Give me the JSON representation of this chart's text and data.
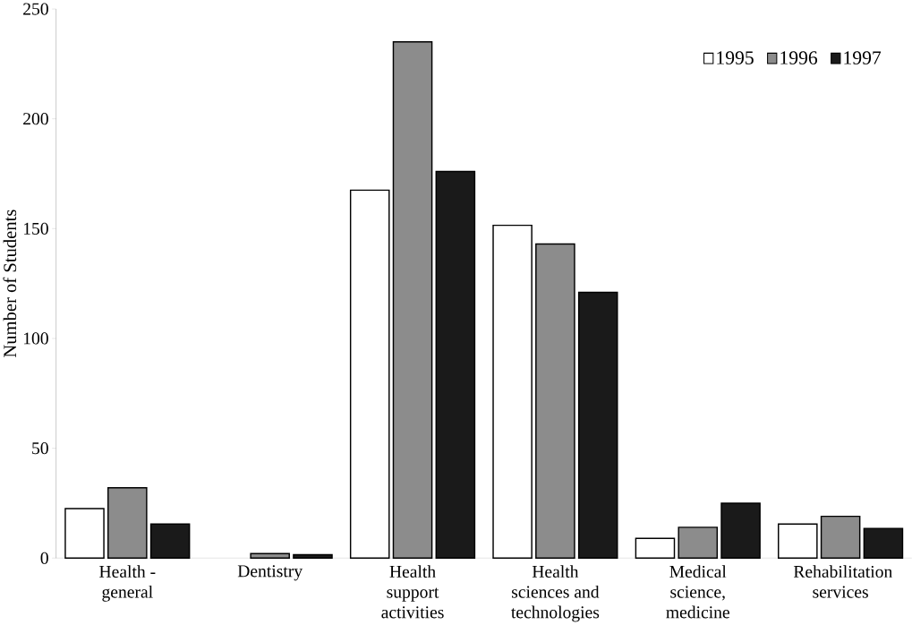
{
  "chart_data": {
    "type": "bar",
    "ylabel": "Number of Students",
    "categories": [
      "Health - general",
      "Dentistry",
      "Health support activities",
      "Health sciences and technologies",
      "Medical science, medicine",
      "Rehabilitation services"
    ],
    "series": [
      {
        "name": "1995",
        "color": "#ffffff",
        "values": [
          22.5,
          null,
          167.5,
          151.5,
          9,
          15.5
        ]
      },
      {
        "name": "1996",
        "color": "#8c8c8c",
        "values": [
          32,
          2,
          235,
          143,
          14,
          19
        ]
      },
      {
        "name": "1997",
        "color": "#1a1a1a",
        "values": [
          15.5,
          1.5,
          176,
          121,
          25,
          13.5
        ]
      }
    ],
    "ylim": [
      0,
      250
    ],
    "yticks": [
      0,
      50,
      100,
      150,
      200,
      250
    ],
    "grid": false,
    "legend": "top right"
  }
}
